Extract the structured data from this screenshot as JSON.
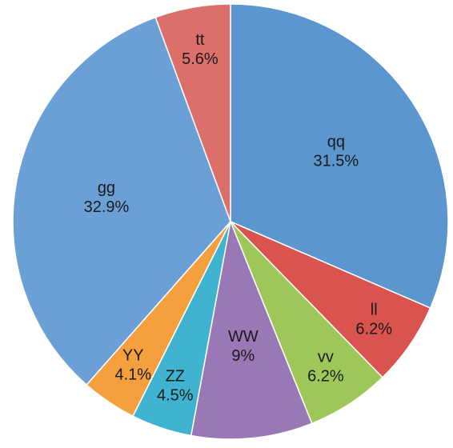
{
  "chart_data": {
    "type": "pie",
    "categories": [
      "qq",
      "ll",
      "vv",
      "WW",
      "ZZ",
      "YY",
      "gg",
      "tt"
    ],
    "values": [
      31.5,
      6.2,
      6.2,
      9,
      4.5,
      4.1,
      32.9,
      5.6
    ],
    "value_labels": [
      "31.5%",
      "6.2%",
      "6.2%",
      "9%",
      "4.5%",
      "4.1%",
      "32.9%",
      "5.6%"
    ],
    "colors": [
      "#5b96cf",
      "#d9534f",
      "#9ec75a",
      "#9a78b6",
      "#3fb3d0",
      "#f5a03e",
      "#6ba0d7",
      "#dd6f6b"
    ]
  }
}
